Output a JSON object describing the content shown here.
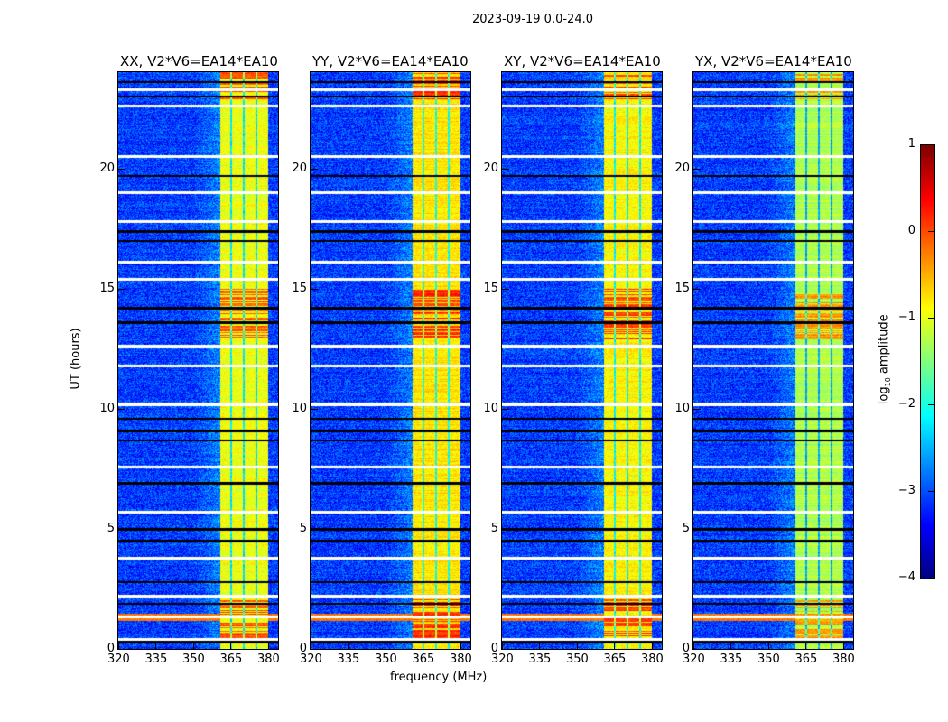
{
  "suptitle": "2023-09-19 0.0-24.0",
  "xlabel": "frequency (MHz)",
  "ylabel": "UT (hours)",
  "colorbar": {
    "label": "log10 amplitude",
    "label_main": "log",
    "label_sub": "10",
    "label_rest": " amplitude",
    "ticks": [
      "1",
      "0",
      "−1",
      "−2",
      "−3",
      "−4"
    ],
    "tick_values": [
      1,
      0,
      -1,
      -2,
      -3,
      -4
    ],
    "range": [
      -4,
      1
    ],
    "colormap": "jet"
  },
  "chart_data": {
    "type": "heatmap",
    "panels": [
      {
        "title": "XX, V2*V6=EA14*EA10",
        "band_level": -1.1
      },
      {
        "title": "YY, V2*V6=EA14*EA10",
        "band_level": -0.9
      },
      {
        "title": "XY, V2*V6=EA14*EA10",
        "band_level": -1.0
      },
      {
        "title": "YX, V2*V6=EA14*EA10",
        "band_level": -1.4
      }
    ],
    "x_ticks": [
      "320",
      "335",
      "350",
      "365",
      "380"
    ],
    "x_tick_values": [
      320,
      335,
      350,
      365,
      380
    ],
    "xlim": [
      320,
      384
    ],
    "y_ticks": [
      "0",
      "5",
      "10",
      "15",
      "20"
    ],
    "y_tick_values": [
      0,
      5,
      10,
      15,
      20
    ],
    "ylim": [
      0,
      24
    ],
    "background_level": -3.2,
    "bright_band_mhz": [
      360.5,
      380
    ],
    "band_channel_edges_mhz": [
      365,
      370,
      375
    ],
    "flagged_hours_white": [
      0.4,
      1.35,
      2.2,
      3.8,
      5.7,
      7.6,
      10.2,
      11.8,
      12.6,
      15.4,
      16.1,
      17.8,
      19.0,
      20.5,
      22.6,
      23.3
    ],
    "dropout_hours_black": [
      0.3,
      1.9,
      2.8,
      4.5,
      5.0,
      6.9,
      8.7,
      9.1,
      9.6,
      13.6,
      14.2,
      17.0,
      17.4,
      19.7,
      23.0,
      23.6
    ],
    "strong_rfi_hours": [
      [
        0.3,
        2.1
      ],
      [
        12.9,
        15.0
      ],
      [
        22.9,
        24.0
      ]
    ],
    "axis_labels": {
      "x": "frequency (MHz)",
      "y": "UT (hours)"
    }
  }
}
